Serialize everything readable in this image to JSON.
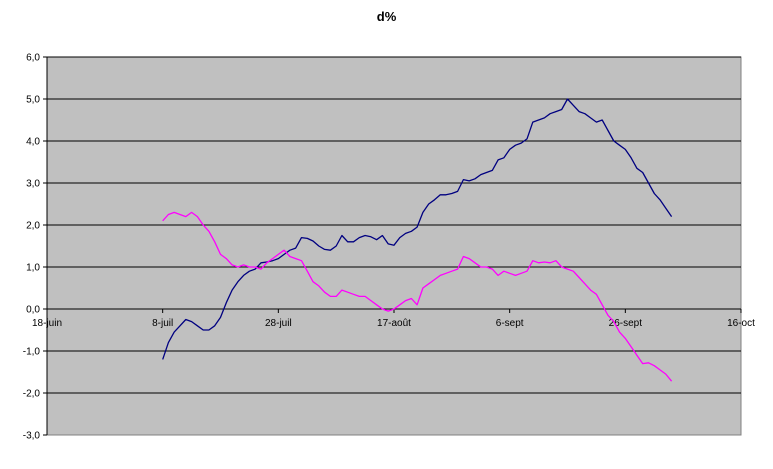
{
  "chart_data": {
    "type": "line",
    "title": "d%",
    "xlabel": "",
    "ylabel": "",
    "grid": true,
    "legend": "none",
    "background_color": "#c0c0c0",
    "ylim": [
      -3,
      6
    ],
    "y_ticks": [
      "6,0",
      "5,0",
      "4,0",
      "3,0",
      "2,0",
      "1,0",
      "0,0",
      "-1,0",
      "-2,0",
      "-3,0"
    ],
    "x_range_days": [
      0,
      120
    ],
    "x_ticks": [
      {
        "day": 0,
        "label": "18-juin"
      },
      {
        "day": 20,
        "label": "8-juil"
      },
      {
        "day": 40,
        "label": "28-juil"
      },
      {
        "day": 60,
        "label": "17-août"
      },
      {
        "day": 80,
        "label": "6-sept"
      },
      {
        "day": 100,
        "label": "26-sept"
      },
      {
        "day": 120,
        "label": "16-oct"
      }
    ],
    "series": [
      {
        "color": "#000080",
        "points": [
          [
            20,
            -1.2
          ],
          [
            21,
            -0.8
          ],
          [
            22,
            -0.55
          ],
          [
            23,
            -0.4
          ],
          [
            24,
            -0.25
          ],
          [
            25,
            -0.3
          ],
          [
            26,
            -0.4
          ],
          [
            27,
            -0.5
          ],
          [
            28,
            -0.5
          ],
          [
            29,
            -0.4
          ],
          [
            30,
            -0.2
          ],
          [
            31,
            0.15
          ],
          [
            32,
            0.45
          ],
          [
            33,
            0.65
          ],
          [
            34,
            0.8
          ],
          [
            35,
            0.9
          ],
          [
            36,
            0.95
          ],
          [
            37,
            1.1
          ],
          [
            38,
            1.12
          ],
          [
            39,
            1.15
          ],
          [
            40,
            1.2
          ],
          [
            41,
            1.3
          ],
          [
            42,
            1.4
          ],
          [
            43,
            1.45
          ],
          [
            44,
            1.7
          ],
          [
            45,
            1.68
          ],
          [
            46,
            1.62
          ],
          [
            47,
            1.5
          ],
          [
            48,
            1.42
          ],
          [
            49,
            1.4
          ],
          [
            50,
            1.5
          ],
          [
            51,
            1.75
          ],
          [
            52,
            1.6
          ],
          [
            53,
            1.6
          ],
          [
            54,
            1.7
          ],
          [
            55,
            1.75
          ],
          [
            56,
            1.72
          ],
          [
            57,
            1.65
          ],
          [
            58,
            1.75
          ],
          [
            59,
            1.55
          ],
          [
            60,
            1.52
          ],
          [
            61,
            1.7
          ],
          [
            62,
            1.8
          ],
          [
            63,
            1.85
          ],
          [
            64,
            1.95
          ],
          [
            65,
            2.3
          ],
          [
            66,
            2.5
          ],
          [
            67,
            2.6
          ],
          [
            68,
            2.72
          ],
          [
            69,
            2.72
          ],
          [
            70,
            2.75
          ],
          [
            71,
            2.8
          ],
          [
            72,
            3.08
          ],
          [
            73,
            3.05
          ],
          [
            74,
            3.1
          ],
          [
            75,
            3.2
          ],
          [
            76,
            3.25
          ],
          [
            77,
            3.3
          ],
          [
            78,
            3.55
          ],
          [
            79,
            3.6
          ],
          [
            80,
            3.8
          ],
          [
            81,
            3.9
          ],
          [
            82,
            3.95
          ],
          [
            83,
            4.05
          ],
          [
            84,
            4.45
          ],
          [
            85,
            4.5
          ],
          [
            86,
            4.55
          ],
          [
            87,
            4.65
          ],
          [
            88,
            4.7
          ],
          [
            89,
            4.75
          ],
          [
            90,
            5.0
          ],
          [
            91,
            4.85
          ],
          [
            92,
            4.7
          ],
          [
            93,
            4.65
          ],
          [
            94,
            4.55
          ],
          [
            95,
            4.45
          ],
          [
            96,
            4.5
          ],
          [
            97,
            4.25
          ],
          [
            98,
            4.0
          ],
          [
            99,
            3.9
          ],
          [
            100,
            3.8
          ],
          [
            101,
            3.6
          ],
          [
            102,
            3.35
          ],
          [
            103,
            3.25
          ],
          [
            104,
            3.0
          ],
          [
            105,
            2.75
          ],
          [
            106,
            2.6
          ],
          [
            107,
            2.4
          ],
          [
            108,
            2.2
          ]
        ]
      },
      {
        "color": "#ff00ff",
        "points": [
          [
            20,
            2.1
          ],
          [
            21,
            2.25
          ],
          [
            22,
            2.3
          ],
          [
            23,
            2.25
          ],
          [
            24,
            2.2
          ],
          [
            25,
            2.3
          ],
          [
            26,
            2.2
          ],
          [
            27,
            2.0
          ],
          [
            28,
            1.85
          ],
          [
            29,
            1.6
          ],
          [
            30,
            1.3
          ],
          [
            31,
            1.2
          ],
          [
            32,
            1.05
          ],
          [
            33,
            1.0
          ],
          [
            34,
            1.05
          ],
          [
            35,
            1.0
          ],
          [
            36,
            1.0
          ],
          [
            37,
            0.95
          ],
          [
            38,
            1.1
          ],
          [
            39,
            1.2
          ],
          [
            40,
            1.3
          ],
          [
            41,
            1.4
          ],
          [
            42,
            1.25
          ],
          [
            43,
            1.2
          ],
          [
            44,
            1.15
          ],
          [
            45,
            0.9
          ],
          [
            46,
            0.65
          ],
          [
            47,
            0.55
          ],
          [
            48,
            0.4
          ],
          [
            49,
            0.3
          ],
          [
            50,
            0.3
          ],
          [
            51,
            0.45
          ],
          [
            52,
            0.4
          ],
          [
            53,
            0.35
          ],
          [
            54,
            0.3
          ],
          [
            55,
            0.3
          ],
          [
            56,
            0.2
          ],
          [
            57,
            0.1
          ],
          [
            58,
            0.0
          ],
          [
            59,
            -0.05
          ],
          [
            60,
            0.0
          ],
          [
            61,
            0.1
          ],
          [
            62,
            0.2
          ],
          [
            63,
            0.25
          ],
          [
            64,
            0.1
          ],
          [
            65,
            0.5
          ],
          [
            66,
            0.6
          ],
          [
            67,
            0.7
          ],
          [
            68,
            0.8
          ],
          [
            69,
            0.85
          ],
          [
            70,
            0.9
          ],
          [
            71,
            0.95
          ],
          [
            72,
            1.25
          ],
          [
            73,
            1.2
          ],
          [
            74,
            1.1
          ],
          [
            75,
            1.0
          ],
          [
            76,
            1.0
          ],
          [
            77,
            0.95
          ],
          [
            78,
            0.8
          ],
          [
            79,
            0.9
          ],
          [
            80,
            0.85
          ],
          [
            81,
            0.8
          ],
          [
            82,
            0.85
          ],
          [
            83,
            0.9
          ],
          [
            84,
            1.15
          ],
          [
            85,
            1.1
          ],
          [
            86,
            1.12
          ],
          [
            87,
            1.1
          ],
          [
            88,
            1.15
          ],
          [
            89,
            1.0
          ],
          [
            90,
            0.95
          ],
          [
            91,
            0.9
          ],
          [
            92,
            0.75
          ],
          [
            93,
            0.6
          ],
          [
            94,
            0.45
          ],
          [
            95,
            0.35
          ],
          [
            96,
            0.1
          ],
          [
            97,
            -0.15
          ],
          [
            98,
            -0.3
          ],
          [
            99,
            -0.55
          ],
          [
            100,
            -0.7
          ],
          [
            101,
            -0.9
          ],
          [
            102,
            -1.1
          ],
          [
            103,
            -1.3
          ],
          [
            104,
            -1.28
          ],
          [
            105,
            -1.35
          ],
          [
            106,
            -1.45
          ],
          [
            107,
            -1.55
          ],
          [
            108,
            -1.72
          ]
        ]
      }
    ]
  }
}
